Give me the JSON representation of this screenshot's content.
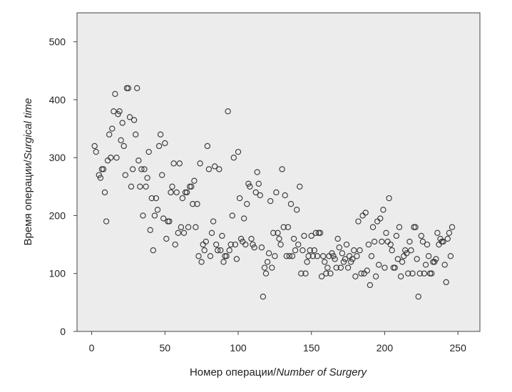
{
  "chart_data": {
    "type": "scatter",
    "title": "",
    "xlabel": {
      "main": "Номер операции/",
      "italic": "Number of Surgery"
    },
    "ylabel": {
      "main": "Время операции/",
      "italic": "Surgical time"
    },
    "xlim": [
      -10,
      265
    ],
    "ylim": [
      0,
      550
    ],
    "xticks": [
      0,
      50,
      100,
      150,
      200,
      250
    ],
    "yticks": [
      0,
      100,
      200,
      300,
      400,
      500
    ],
    "grid": false,
    "background": "#ececec",
    "marker_color": "#333333",
    "points": [
      [
        2,
        320
      ],
      [
        3,
        310
      ],
      [
        5,
        270
      ],
      [
        6,
        265
      ],
      [
        7,
        280
      ],
      [
        8,
        280
      ],
      [
        9,
        240
      ],
      [
        10,
        190
      ],
      [
        11,
        295
      ],
      [
        12,
        340
      ],
      [
        13,
        300
      ],
      [
        14,
        350
      ],
      [
        15,
        380
      ],
      [
        16,
        410
      ],
      [
        17,
        300
      ],
      [
        18,
        375
      ],
      [
        19,
        380
      ],
      [
        20,
        330
      ],
      [
        21,
        360
      ],
      [
        22,
        320
      ],
      [
        23,
        270
      ],
      [
        24,
        420
      ],
      [
        25,
        420
      ],
      [
        26,
        370
      ],
      [
        27,
        250
      ],
      [
        28,
        280
      ],
      [
        29,
        365
      ],
      [
        30,
        340
      ],
      [
        31,
        420
      ],
      [
        32,
        295
      ],
      [
        33,
        250
      ],
      [
        34,
        280
      ],
      [
        35,
        200
      ],
      [
        36,
        280
      ],
      [
        37,
        250
      ],
      [
        38,
        265
      ],
      [
        39,
        310
      ],
      [
        40,
        175
      ],
      [
        41,
        230
      ],
      [
        42,
        140
      ],
      [
        43,
        200
      ],
      [
        44,
        230
      ],
      [
        45,
        210
      ],
      [
        46,
        320
      ],
      [
        47,
        340
      ],
      [
        48,
        270
      ],
      [
        49,
        195
      ],
      [
        50,
        325
      ],
      [
        51,
        160
      ],
      [
        52,
        190
      ],
      [
        53,
        190
      ],
      [
        54,
        240
      ],
      [
        55,
        250
      ],
      [
        56,
        290
      ],
      [
        57,
        150
      ],
      [
        58,
        240
      ],
      [
        59,
        170
      ],
      [
        60,
        290
      ],
      [
        61,
        180
      ],
      [
        62,
        230
      ],
      [
        63,
        170
      ],
      [
        64,
        240
      ],
      [
        65,
        240
      ],
      [
        66,
        180
      ],
      [
        67,
        250
      ],
      [
        68,
        250
      ],
      [
        69,
        220
      ],
      [
        70,
        260
      ],
      [
        71,
        180
      ],
      [
        72,
        220
      ],
      [
        73,
        130
      ],
      [
        74,
        290
      ],
      [
        75,
        120
      ],
      [
        76,
        150
      ],
      [
        77,
        140
      ],
      [
        78,
        155
      ],
      [
        79,
        320
      ],
      [
        80,
        280
      ],
      [
        81,
        130
      ],
      [
        82,
        170
      ],
      [
        83,
        190
      ],
      [
        84,
        285
      ],
      [
        85,
        150
      ],
      [
        86,
        140
      ],
      [
        87,
        280
      ],
      [
        88,
        140
      ],
      [
        89,
        165
      ],
      [
        90,
        120
      ],
      [
        91,
        130
      ],
      [
        92,
        130
      ],
      [
        93,
        380
      ],
      [
        94,
        140
      ],
      [
        95,
        150
      ],
      [
        96,
        200
      ],
      [
        97,
        300
      ],
      [
        98,
        150
      ],
      [
        99,
        125
      ],
      [
        100,
        310
      ],
      [
        101,
        230
      ],
      [
        102,
        160
      ],
      [
        103,
        155
      ],
      [
        104,
        195
      ],
      [
        105,
        150
      ],
      [
        106,
        220
      ],
      [
        107,
        255
      ],
      [
        108,
        250
      ],
      [
        109,
        160
      ],
      [
        110,
        150
      ],
      [
        111,
        145
      ],
      [
        112,
        240
      ],
      [
        113,
        275
      ],
      [
        114,
        255
      ],
      [
        115,
        235
      ],
      [
        116,
        145
      ],
      [
        117,
        60
      ],
      [
        118,
        110
      ],
      [
        119,
        100
      ],
      [
        120,
        120
      ],
      [
        121,
        135
      ],
      [
        122,
        225
      ],
      [
        123,
        110
      ],
      [
        124,
        170
      ],
      [
        125,
        130
      ],
      [
        126,
        240
      ],
      [
        127,
        170
      ],
      [
        128,
        160
      ],
      [
        129,
        150
      ],
      [
        130,
        280
      ],
      [
        131,
        180
      ],
      [
        132,
        235
      ],
      [
        133,
        130
      ],
      [
        134,
        180
      ],
      [
        135,
        130
      ],
      [
        136,
        220
      ],
      [
        137,
        130
      ],
      [
        138,
        160
      ],
      [
        139,
        140
      ],
      [
        140,
        210
      ],
      [
        141,
        150
      ],
      [
        142,
        250
      ],
      [
        143,
        100
      ],
      [
        144,
        140
      ],
      [
        145,
        165
      ],
      [
        146,
        100
      ],
      [
        147,
        120
      ],
      [
        148,
        130
      ],
      [
        149,
        140
      ],
      [
        150,
        165
      ],
      [
        151,
        130
      ],
      [
        152,
        140
      ],
      [
        153,
        170
      ],
      [
        154,
        130
      ],
      [
        155,
        170
      ],
      [
        156,
        170
      ],
      [
        157,
        95
      ],
      [
        158,
        130
      ],
      [
        159,
        120
      ],
      [
        160,
        100
      ],
      [
        161,
        110
      ],
      [
        162,
        130
      ],
      [
        163,
        100
      ],
      [
        164,
        135
      ],
      [
        165,
        130
      ],
      [
        166,
        125
      ],
      [
        167,
        110
      ],
      [
        168,
        160
      ],
      [
        169,
        145
      ],
      [
        170,
        110
      ],
      [
        171,
        135
      ],
      [
        172,
        120
      ],
      [
        173,
        125
      ],
      [
        174,
        150
      ],
      [
        175,
        110
      ],
      [
        176,
        130
      ],
      [
        177,
        120
      ],
      [
        178,
        125
      ],
      [
        179,
        140
      ],
      [
        180,
        95
      ],
      [
        181,
        130
      ],
      [
        182,
        190
      ],
      [
        183,
        140
      ],
      [
        184,
        100
      ],
      [
        185,
        200
      ],
      [
        186,
        100
      ],
      [
        187,
        205
      ],
      [
        188,
        105
      ],
      [
        189,
        150
      ],
      [
        190,
        80
      ],
      [
        191,
        130
      ],
      [
        192,
        180
      ],
      [
        193,
        155
      ],
      [
        194,
        95
      ],
      [
        195,
        190
      ],
      [
        196,
        115
      ],
      [
        197,
        195
      ],
      [
        198,
        155
      ],
      [
        199,
        210
      ],
      [
        200,
        110
      ],
      [
        201,
        170
      ],
      [
        202,
        155
      ],
      [
        203,
        230
      ],
      [
        204,
        150
      ],
      [
        205,
        140
      ],
      [
        206,
        110
      ],
      [
        207,
        110
      ],
      [
        208,
        165
      ],
      [
        209,
        125
      ],
      [
        210,
        180
      ],
      [
        211,
        95
      ],
      [
        212,
        120
      ],
      [
        213,
        130
      ],
      [
        214,
        140
      ],
      [
        215,
        135
      ],
      [
        216,
        100
      ],
      [
        217,
        155
      ],
      [
        218,
        140
      ],
      [
        219,
        100
      ],
      [
        220,
        180
      ],
      [
        221,
        180
      ],
      [
        222,
        125
      ],
      [
        223,
        60
      ],
      [
        224,
        100
      ],
      [
        225,
        165
      ],
      [
        226,
        155
      ],
      [
        227,
        100
      ],
      [
        228,
        115
      ],
      [
        229,
        150
      ],
      [
        230,
        130
      ],
      [
        231,
        100
      ],
      [
        232,
        100
      ],
      [
        233,
        120
      ],
      [
        234,
        120
      ],
      [
        235,
        125
      ],
      [
        236,
        170
      ],
      [
        237,
        150
      ],
      [
        238,
        160
      ],
      [
        239,
        155
      ],
      [
        240,
        155
      ],
      [
        241,
        115
      ],
      [
        242,
        85
      ],
      [
        243,
        160
      ],
      [
        244,
        170
      ],
      [
        245,
        130
      ],
      [
        246,
        180
      ]
    ]
  }
}
